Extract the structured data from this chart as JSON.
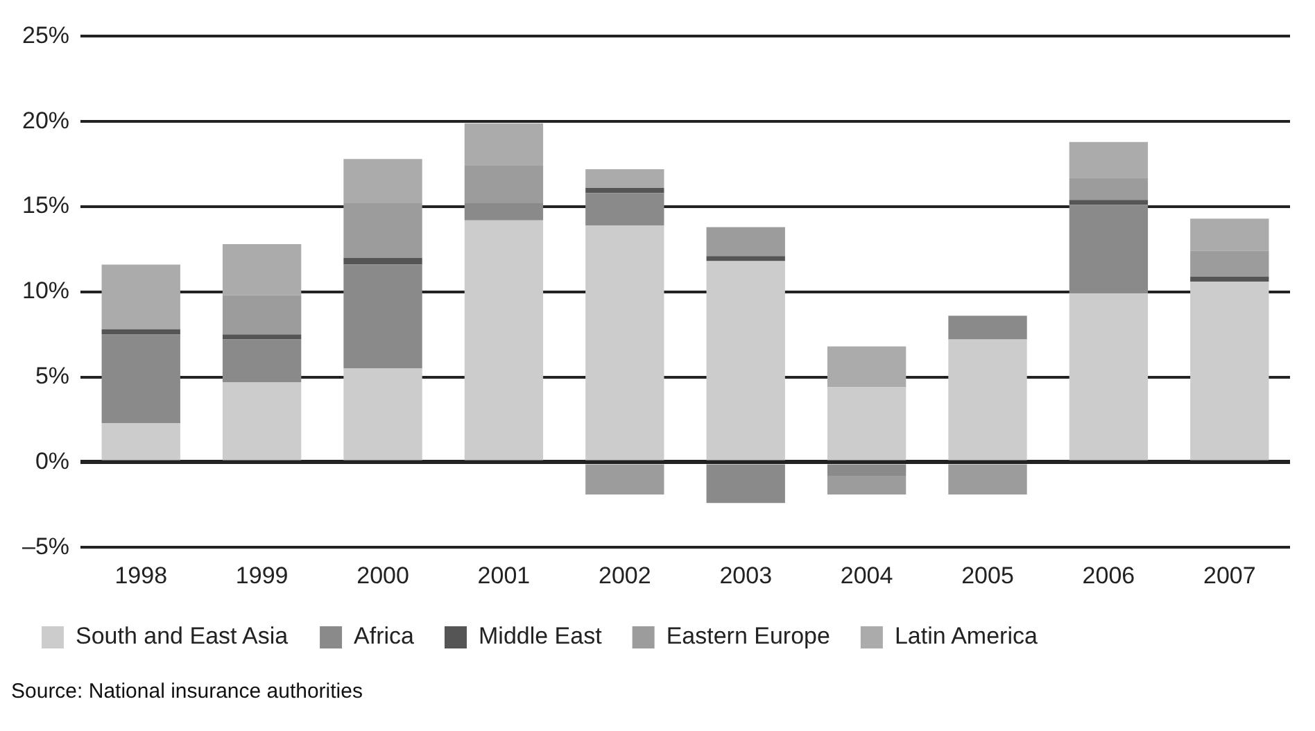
{
  "chart_data": {
    "type": "bar",
    "stacked": true,
    "categories": [
      "1998",
      "1999",
      "2000",
      "2001",
      "2002",
      "2003",
      "2004",
      "2005",
      "2006",
      "2007"
    ],
    "series": [
      {
        "name": "South and East Asia",
        "color": "#cccccc",
        "values": [
          2.3,
          4.7,
          5.5,
          14.2,
          13.9,
          11.8,
          4.4,
          7.2,
          9.9,
          10.6
        ]
      },
      {
        "name": "Africa",
        "color": "#8a8a8a",
        "values": [
          5.2,
          2.5,
          6.1,
          1.0,
          1.9,
          -2.4,
          -0.8,
          1.4,
          5.2,
          null
        ]
      },
      {
        "name": "Middle East",
        "color": "#555555",
        "values": [
          0.3,
          0.3,
          0.4,
          null,
          0.3,
          0.3,
          null,
          null,
          0.3,
          0.3
        ]
      },
      {
        "name": "Eastern Europe",
        "color": "#9c9c9c",
        "values": [
          null,
          2.3,
          3.2,
          2.2,
          -1.9,
          1.7,
          -1.1,
          -1.9,
          1.3,
          1.5
        ]
      },
      {
        "name": "Latin America",
        "color": "#ababab",
        "values": [
          3.8,
          3.0,
          2.6,
          2.5,
          1.1,
          null,
          2.4,
          null,
          2.1,
          1.9
        ]
      }
    ],
    "ylim": [
      -5,
      25
    ],
    "yticks": [
      {
        "value": -5,
        "label": "–5%"
      },
      {
        "value": 0,
        "label": "0%"
      },
      {
        "value": 5,
        "label": "5%"
      },
      {
        "value": 10,
        "label": "10%"
      },
      {
        "value": 15,
        "label": "15%"
      },
      {
        "value": 20,
        "label": "20%"
      },
      {
        "value": 25,
        "label": "25%"
      }
    ],
    "grid": "y",
    "legend": "bottom",
    "annotations": [
      "Source: National insurance authorities"
    ]
  }
}
